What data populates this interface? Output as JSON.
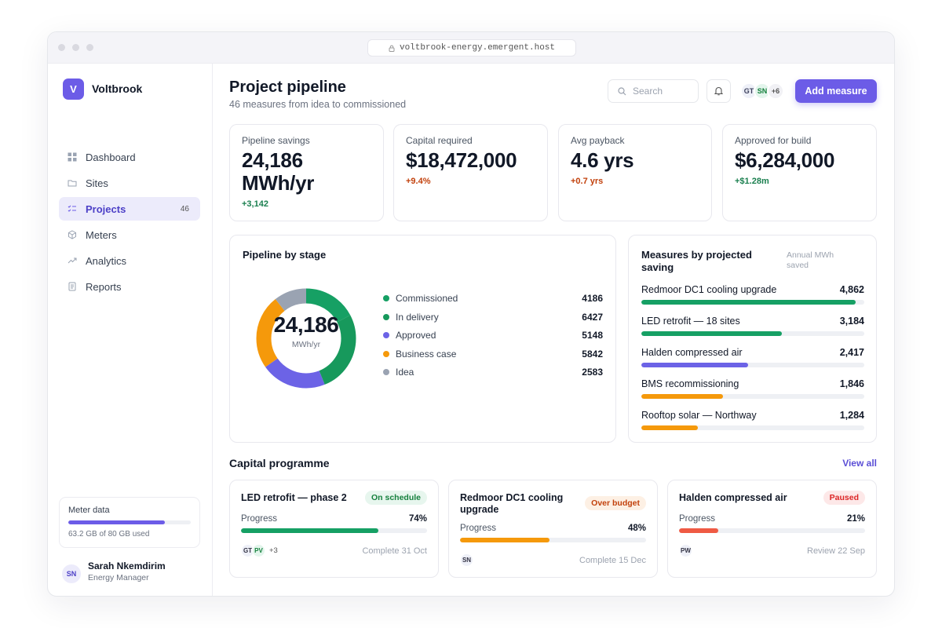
{
  "browser": {
    "url": "voltbrook-energy.emergent.host"
  },
  "sidebar": {
    "brand": {
      "initial": "V",
      "name": "Voltbrook"
    },
    "nav": [
      {
        "label": "Dashboard"
      },
      {
        "label": "Sites"
      },
      {
        "label": "Projects",
        "badge": "46"
      },
      {
        "label": "Meters"
      },
      {
        "label": "Analytics"
      },
      {
        "label": "Reports"
      }
    ],
    "storage": {
      "title": "Meter data",
      "used": 63.2,
      "total": 80,
      "label": "63.2 GB of 80 GB used"
    },
    "user": {
      "initials": "SN",
      "name": "Sarah Nkemdirim",
      "role": "Energy Manager"
    }
  },
  "header": {
    "title": "Project pipeline",
    "subtitle": "46 measures from idea to commissioned",
    "search": "Search",
    "avatars": [
      "GT",
      "SN"
    ],
    "avatars_more": "+6",
    "button": "Add measure"
  },
  "kpis": [
    {
      "label": "Pipeline savings",
      "value": "24,186 MWh/yr",
      "delta": "+3,142"
    },
    {
      "label": "Capital required",
      "value": "$18,472,000",
      "delta": "+9.4%"
    },
    {
      "label": "Avg payback",
      "value": "4.6 yrs",
      "delta": "+0.7 yrs"
    },
    {
      "label": "Approved for build",
      "value": "$6,284,000",
      "delta": "+$1.28m"
    }
  ],
  "pipeline": {
    "title": "Pipeline by stage",
    "center_value": "24,186",
    "center_unit": "MWh/yr",
    "stages": [
      {
        "name": "Commissioned",
        "value": 4186,
        "color": "#16a064"
      },
      {
        "name": "In delivery",
        "value": 6427,
        "color": "#17995c"
      },
      {
        "name": "Approved",
        "value": 5148,
        "color": "#6c63e6"
      },
      {
        "name": "Business case",
        "value": 5842,
        "color": "#f5990b"
      },
      {
        "name": "Idea",
        "value": 2583,
        "color": "#9aa3b2"
      }
    ]
  },
  "measures": {
    "title": "Measures by projected saving",
    "note": "Annual MWh saved",
    "items": [
      {
        "name": "Redmoor DC1 cooling upgrade",
        "value": 4862,
        "value_label": "4,862",
        "color": "#16a064"
      },
      {
        "name": "LED retrofit — 18 sites",
        "value": 3184,
        "value_label": "3,184",
        "color": "#16a064"
      },
      {
        "name": "Halden compressed air",
        "value": 2417,
        "value_label": "2,417",
        "color": "#6c63e6"
      },
      {
        "name": "BMS recommissioning",
        "value": 1846,
        "value_label": "1,846",
        "color": "#f5990b"
      },
      {
        "name": "Rooftop solar — Northway",
        "value": 1284,
        "value_label": "1,284",
        "color": "#f5990b"
      }
    ]
  },
  "capital": {
    "title": "Capital programme",
    "link": "View all",
    "progress_label": "Progress",
    "projects": [
      {
        "name": "LED retrofit — phase 2",
        "status": "On schedule",
        "progress": 74,
        "progress_text": "74%",
        "color": "#16a064",
        "people": [
          "GT",
          "PV"
        ],
        "more": "+3",
        "date": "Complete 31 Oct"
      },
      {
        "name": "Redmoor DC1 cooling upgrade",
        "status": "Over budget",
        "progress": 48,
        "progress_text": "48%",
        "color": "#f5990b",
        "people": [
          "SN"
        ],
        "date": "Complete 15 Dec"
      },
      {
        "name": "Halden compressed air",
        "status": "Paused",
        "progress": 21,
        "progress_text": "21%",
        "color": "#ef5a44",
        "people": [
          "PW"
        ],
        "date": "Review 22 Sep"
      }
    ]
  }
}
